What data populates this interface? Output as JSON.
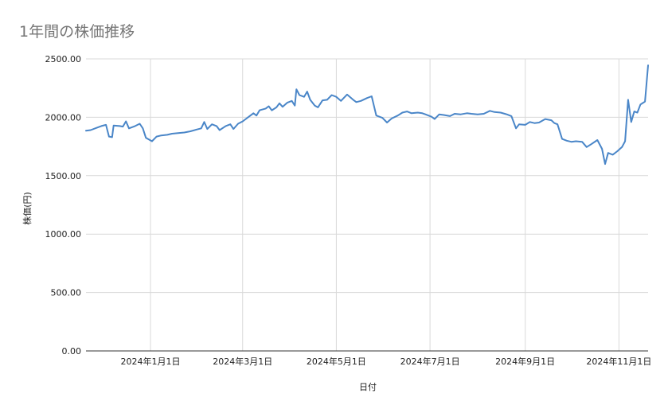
{
  "chart_data": {
    "type": "line",
    "title": "1年間の株価推移",
    "xlabel": "日付",
    "ylabel": "株価(円)",
    "ylim": [
      0,
      2500
    ],
    "yticks": [
      "0.00",
      "500.00",
      "1000.00",
      "1500.00",
      "2000.00",
      "2500.00"
    ],
    "ytick_values": [
      0,
      500,
      1000,
      1500,
      2000,
      2500
    ],
    "xticks": [
      "2024年1月1日",
      "2024年3月1日",
      "2024年5月1日",
      "2024年7月1日",
      "2024年9月1日",
      "2024年11月1日"
    ],
    "xtick_dates": [
      "2024-01-01",
      "2024-03-01",
      "2024-05-01",
      "2024-07-01",
      "2024-09-01",
      "2024-11-01"
    ],
    "xlim": [
      "2023-11-20",
      "2024-11-20"
    ],
    "grid": true,
    "legend": "none",
    "line_color": "#4a86c8",
    "series": [
      {
        "name": "",
        "points": [
          [
            "2023-11-20",
            1885
          ],
          [
            "2023-11-23",
            1890
          ],
          [
            "2023-11-27",
            1910
          ],
          [
            "2023-11-30",
            1925
          ],
          [
            "2023-12-03",
            1935
          ],
          [
            "2023-12-05",
            1835
          ],
          [
            "2023-12-07",
            1830
          ],
          [
            "2023-12-08",
            1930
          ],
          [
            "2023-12-12",
            1925
          ],
          [
            "2023-12-14",
            1920
          ],
          [
            "2023-12-16",
            1965
          ],
          [
            "2023-12-18",
            1905
          ],
          [
            "2023-12-22",
            1925
          ],
          [
            "2023-12-25",
            1945
          ],
          [
            "2023-12-27",
            1905
          ],
          [
            "2023-12-29",
            1825
          ],
          [
            "2024-01-02",
            1795
          ],
          [
            "2024-01-05",
            1835
          ],
          [
            "2024-01-08",
            1845
          ],
          [
            "2024-01-12",
            1850
          ],
          [
            "2024-01-15",
            1860
          ],
          [
            "2024-01-19",
            1865
          ],
          [
            "2024-01-23",
            1870
          ],
          [
            "2024-01-27",
            1880
          ],
          [
            "2024-01-31",
            1895
          ],
          [
            "2024-02-03",
            1905
          ],
          [
            "2024-02-05",
            1960
          ],
          [
            "2024-02-07",
            1900
          ],
          [
            "2024-02-10",
            1940
          ],
          [
            "2024-02-13",
            1925
          ],
          [
            "2024-02-15",
            1890
          ],
          [
            "2024-02-19",
            1925
          ],
          [
            "2024-02-22",
            1940
          ],
          [
            "2024-02-24",
            1900
          ],
          [
            "2024-02-27",
            1945
          ],
          [
            "2024-03-01",
            1965
          ],
          [
            "2024-03-05",
            2005
          ],
          [
            "2024-03-08",
            2035
          ],
          [
            "2024-03-10",
            2015
          ],
          [
            "2024-03-12",
            2060
          ],
          [
            "2024-03-16",
            2075
          ],
          [
            "2024-03-18",
            2095
          ],
          [
            "2024-03-20",
            2060
          ],
          [
            "2024-03-23",
            2085
          ],
          [
            "2024-03-25",
            2120
          ],
          [
            "2024-03-27",
            2090
          ],
          [
            "2024-03-30",
            2125
          ],
          [
            "2024-04-02",
            2140
          ],
          [
            "2024-04-04",
            2100
          ],
          [
            "2024-04-05",
            2240
          ],
          [
            "2024-04-07",
            2190
          ],
          [
            "2024-04-10",
            2175
          ],
          [
            "2024-04-12",
            2220
          ],
          [
            "2024-04-14",
            2150
          ],
          [
            "2024-04-17",
            2100
          ],
          [
            "2024-04-19",
            2085
          ],
          [
            "2024-04-22",
            2145
          ],
          [
            "2024-04-25",
            2150
          ],
          [
            "2024-04-28",
            2190
          ],
          [
            "2024-05-01",
            2175
          ],
          [
            "2024-05-04",
            2140
          ],
          [
            "2024-05-08",
            2195
          ],
          [
            "2024-05-12",
            2150
          ],
          [
            "2024-05-14",
            2130
          ],
          [
            "2024-05-17",
            2140
          ],
          [
            "2024-05-21",
            2165
          ],
          [
            "2024-05-24",
            2180
          ],
          [
            "2024-05-27",
            2015
          ],
          [
            "2024-05-31",
            1995
          ],
          [
            "2024-06-03",
            1955
          ],
          [
            "2024-06-06",
            1990
          ],
          [
            "2024-06-10",
            2015
          ],
          [
            "2024-06-13",
            2040
          ],
          [
            "2024-06-16",
            2050
          ],
          [
            "2024-06-19",
            2035
          ],
          [
            "2024-06-23",
            2040
          ],
          [
            "2024-06-26",
            2035
          ],
          [
            "2024-06-28",
            2025
          ],
          [
            "2024-07-02",
            2005
          ],
          [
            "2024-07-04",
            1985
          ],
          [
            "2024-07-07",
            2025
          ],
          [
            "2024-07-10",
            2020
          ],
          [
            "2024-07-14",
            2010
          ],
          [
            "2024-07-17",
            2030
          ],
          [
            "2024-07-21",
            2025
          ],
          [
            "2024-07-25",
            2035
          ],
          [
            "2024-07-28",
            2030
          ],
          [
            "2024-08-01",
            2025
          ],
          [
            "2024-08-05",
            2030
          ],
          [
            "2024-08-09",
            2055
          ],
          [
            "2024-08-12",
            2045
          ],
          [
            "2024-08-16",
            2040
          ],
          [
            "2024-08-20",
            2025
          ],
          [
            "2024-08-23",
            2010
          ],
          [
            "2024-08-26",
            1905
          ],
          [
            "2024-08-28",
            1940
          ],
          [
            "2024-09-01",
            1935
          ],
          [
            "2024-09-04",
            1960
          ],
          [
            "2024-09-07",
            1950
          ],
          [
            "2024-09-10",
            1955
          ],
          [
            "2024-09-14",
            1985
          ],
          [
            "2024-09-18",
            1975
          ],
          [
            "2024-09-20",
            1950
          ],
          [
            "2024-09-22",
            1940
          ],
          [
            "2024-09-25",
            1815
          ],
          [
            "2024-09-28",
            1800
          ],
          [
            "2024-10-01",
            1790
          ],
          [
            "2024-10-04",
            1795
          ],
          [
            "2024-10-08",
            1790
          ],
          [
            "2024-10-11",
            1745
          ],
          [
            "2024-10-14",
            1770
          ],
          [
            "2024-10-18",
            1805
          ],
          [
            "2024-10-21",
            1730
          ],
          [
            "2024-10-23",
            1600
          ],
          [
            "2024-10-25",
            1695
          ],
          [
            "2024-10-28",
            1680
          ],
          [
            "2024-10-31",
            1710
          ],
          [
            "2024-11-03",
            1745
          ],
          [
            "2024-11-05",
            1795
          ],
          [
            "2024-11-07",
            2150
          ],
          [
            "2024-11-09",
            1960
          ],
          [
            "2024-11-11",
            2050
          ],
          [
            "2024-11-13",
            2040
          ],
          [
            "2024-11-15",
            2110
          ],
          [
            "2024-11-18",
            2135
          ],
          [
            "2024-11-20",
            2445
          ]
        ]
      }
    ]
  }
}
